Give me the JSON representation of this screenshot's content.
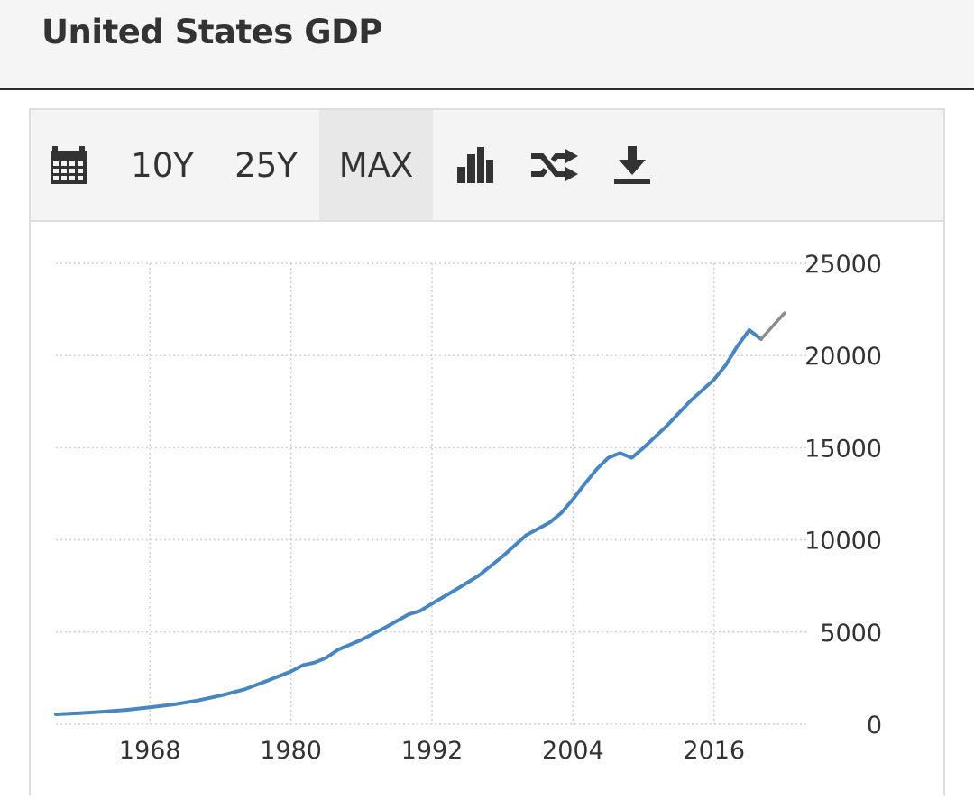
{
  "header": {
    "title": "United States GDP"
  },
  "toolbar": {
    "calendar_icon": "calendar-icon",
    "ranges": [
      "10Y",
      "25Y",
      "MAX"
    ],
    "active_range": "MAX",
    "bar_chart_icon": "bar-chart-icon",
    "shuffle_icon": "shuffle-icon",
    "download_icon": "download-icon"
  },
  "chart_data": {
    "type": "line",
    "title": "",
    "xlabel": "",
    "ylabel": "",
    "xlim": [
      1960,
      2024
    ],
    "ylim": [
      0,
      25000
    ],
    "x_ticks": [
      "1968",
      "1980",
      "1992",
      "2004",
      "2016"
    ],
    "y_ticks": [
      "25000",
      "20000",
      "15000",
      "10000",
      "5000",
      "0"
    ],
    "y_axis_side": "right",
    "grid": true,
    "series": [
      {
        "color": "#4a86be",
        "x": [
          1960,
          1962,
          1964,
          1966,
          1968,
          1970,
          1972,
          1974,
          1976,
          1978,
          1980,
          1981,
          1982,
          1983,
          1984,
          1986,
          1988,
          1990,
          1991,
          1992,
          1994,
          1996,
          1998,
          2000,
          2002,
          2003,
          2004,
          2005,
          2006,
          2007,
          2008,
          2009,
          2010,
          2012,
          2014,
          2016,
          2017,
          2018,
          2019,
          2020
        ],
        "y": [
          540,
          600,
          680,
          780,
          920,
          1070,
          1280,
          1550,
          1880,
          2360,
          2860,
          3200,
          3340,
          3600,
          4040,
          4580,
          5240,
          5960,
          6150,
          6540,
          7290,
          8070,
          9100,
          10250,
          10940,
          11460,
          12210,
          13040,
          13820,
          14450,
          14710,
          14450,
          15000,
          16200,
          17550,
          18700,
          19480,
          20530,
          21380,
          20890
        ]
      },
      {
        "color": "#8c8c8c",
        "x": [
          2020,
          2021,
          2022
        ],
        "y": [
          20890,
          21600,
          22300
        ]
      }
    ]
  }
}
